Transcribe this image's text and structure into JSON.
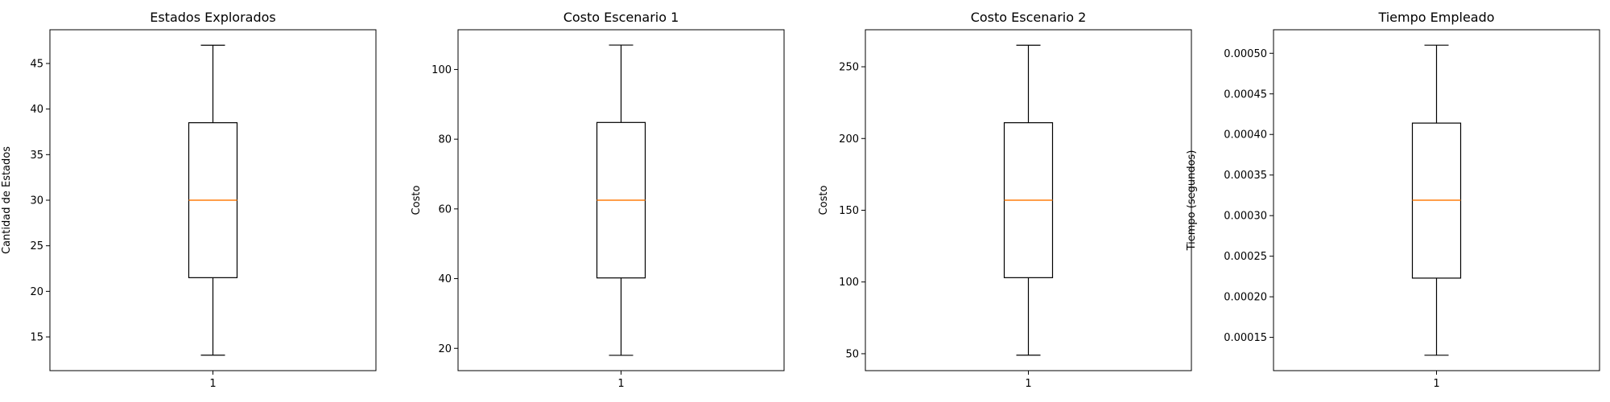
{
  "chart_data": [
    {
      "type": "box",
      "title": "Estados Explorados",
      "xlabel": "",
      "ylabel": "Cantidad de Estados",
      "categories": [
        "1"
      ],
      "box": {
        "whisker_low": 13,
        "q1": 21.5,
        "median": 30,
        "q3": 38.5,
        "whisker_high": 47
      },
      "ylim": [
        11.3,
        48.7
      ],
      "yticks": [
        15,
        20,
        25,
        30,
        35,
        40,
        45
      ],
      "ytick_labels": [
        "15",
        "20",
        "25",
        "30",
        "35",
        "40",
        "45"
      ]
    },
    {
      "type": "box",
      "title": "Costo Escenario 1",
      "xlabel": "",
      "ylabel": "Costo",
      "categories": [
        "1"
      ],
      "box": {
        "whisker_low": 18,
        "q1": 40.2,
        "median": 62.5,
        "q3": 84.8,
        "whisker_high": 107
      },
      "ylim": [
        13.6,
        111.4
      ],
      "yticks": [
        20,
        40,
        60,
        80,
        100
      ],
      "ytick_labels": [
        "20",
        "40",
        "60",
        "80",
        "100"
      ]
    },
    {
      "type": "box",
      "title": "Costo Escenario 2",
      "xlabel": "",
      "ylabel": "Costo",
      "categories": [
        "1"
      ],
      "box": {
        "whisker_low": 49,
        "q1": 103,
        "median": 157,
        "q3": 211,
        "whisker_high": 265
      },
      "ylim": [
        38.2,
        275.8
      ],
      "yticks": [
        50,
        100,
        150,
        200,
        250
      ],
      "ytick_labels": [
        "50",
        "100",
        "150",
        "200",
        "250"
      ]
    },
    {
      "type": "box",
      "title": "Tiempo Empleado",
      "xlabel": "",
      "ylabel": "Tiempo (segundos)",
      "categories": [
        "1"
      ],
      "box": {
        "whisker_low": 0.000128,
        "q1": 0.000223,
        "median": 0.000319,
        "q3": 0.000414,
        "whisker_high": 0.00051
      },
      "ylim": [
        0.000109,
        0.000529
      ],
      "yticks": [
        0.00015,
        0.0002,
        0.00025,
        0.0003,
        0.00035,
        0.0004,
        0.00045,
        0.0005
      ],
      "ytick_labels": [
        "0.00015",
        "0.00020",
        "0.00025",
        "0.00030",
        "0.00035",
        "0.00040",
        "0.00045",
        "0.00050"
      ]
    }
  ],
  "colors": {
    "median": "#ff7f0e",
    "box": "#000000",
    "axes": "#000000"
  }
}
